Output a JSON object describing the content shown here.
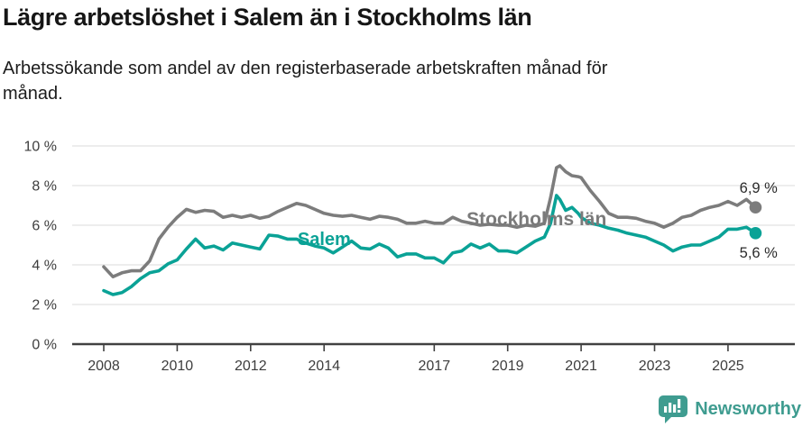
{
  "header": {
    "title": "Lägre arbetslöshet i Salem än i Stockholms län",
    "subtitle_line1": "Arbetssökande som andel av den registerbaserade arbetskraften månad för",
    "subtitle_line2": "månad."
  },
  "footer": {
    "brand": "Newsworthy",
    "brand_color": "#3f9c90"
  },
  "colors": {
    "salem": "#0aa296",
    "stockholm": "#7c7c7c",
    "gridline": "#e2e2e2",
    "axis": "#414141",
    "tick_label": "#3d3d3d",
    "value_label": "#2b2b2b"
  },
  "chart_data": {
    "type": "line",
    "title": "Lägre arbetslöshet i Salem än i Stockholms län",
    "subtitle": "Arbetssökande som andel av den registerbaserade arbetskraften månad för månad.",
    "xlabel": "",
    "ylabel": "",
    "ylim": [
      0,
      10
    ],
    "xlim": [
      2007.15,
      2026.85
    ],
    "grid": "horizontal",
    "legend_position": "inline-labels",
    "y_ticks": [
      0,
      2,
      4,
      6,
      8,
      10
    ],
    "y_tick_labels": [
      "0 %",
      "2 %",
      "4 %",
      "6 %",
      "8 %",
      "10 %"
    ],
    "x_ticks": [
      2008,
      2010,
      2012,
      2014,
      2017,
      2019,
      2021,
      2023,
      2025
    ],
    "x_tick_labels": [
      "2008",
      "2010",
      "2012",
      "2014",
      "2017",
      "2019",
      "2021",
      "2023",
      "2025"
    ],
    "x": [
      2008.0,
      2008.25,
      2008.5,
      2008.75,
      2009.0,
      2009.25,
      2009.5,
      2009.75,
      2010.0,
      2010.25,
      2010.5,
      2010.75,
      2011.0,
      2011.25,
      2011.5,
      2011.75,
      2012.0,
      2012.25,
      2012.5,
      2012.75,
      2013.0,
      2013.25,
      2013.5,
      2013.75,
      2014.0,
      2014.25,
      2014.5,
      2014.75,
      2015.0,
      2015.25,
      2015.5,
      2015.75,
      2016.0,
      2016.25,
      2016.5,
      2016.75,
      2017.0,
      2017.25,
      2017.5,
      2017.75,
      2018.0,
      2018.25,
      2018.5,
      2018.75,
      2019.0,
      2019.25,
      2019.5,
      2019.75,
      2020.0,
      2020.17,
      2020.33,
      2020.42,
      2020.58,
      2020.75,
      2020.92,
      2021.0,
      2021.25,
      2021.5,
      2021.75,
      2022.0,
      2022.25,
      2022.5,
      2022.75,
      2023.0,
      2023.25,
      2023.5,
      2023.75,
      2024.0,
      2024.25,
      2024.5,
      2024.75,
      2025.0,
      2025.25,
      2025.5,
      2025.75
    ],
    "series": [
      {
        "name": "Stockholms län",
        "color": "#7c7c7c",
        "end_label": "6,9 %",
        "end_value": 6.9,
        "values": [
          3.9,
          3.4,
          3.6,
          3.7,
          3.7,
          4.2,
          5.3,
          5.9,
          6.4,
          6.8,
          6.65,
          6.75,
          6.7,
          6.4,
          6.5,
          6.4,
          6.5,
          6.35,
          6.45,
          6.7,
          6.9,
          7.1,
          7.0,
          6.8,
          6.6,
          6.5,
          6.45,
          6.5,
          6.4,
          6.3,
          6.45,
          6.4,
          6.3,
          6.1,
          6.1,
          6.2,
          6.1,
          6.1,
          6.4,
          6.2,
          6.1,
          6.0,
          6.05,
          6.0,
          6.0,
          5.9,
          6.0,
          5.95,
          6.1,
          7.4,
          8.9,
          9.0,
          8.7,
          8.5,
          8.45,
          8.4,
          7.75,
          7.2,
          6.6,
          6.4,
          6.4,
          6.35,
          6.2,
          6.1,
          5.9,
          6.1,
          6.4,
          6.5,
          6.75,
          6.9,
          7.0,
          7.2,
          7.0,
          7.3,
          6.9
        ]
      },
      {
        "name": "Salem",
        "color": "#0aa296",
        "end_label": "5,6 %",
        "end_value": 5.6,
        "values": [
          2.7,
          2.5,
          2.6,
          2.9,
          3.3,
          3.6,
          3.7,
          4.05,
          4.25,
          4.8,
          5.3,
          4.85,
          4.95,
          4.75,
          5.1,
          5.0,
          4.9,
          4.8,
          5.5,
          5.45,
          5.3,
          5.3,
          5.1,
          4.95,
          4.85,
          4.6,
          4.9,
          5.2,
          4.85,
          4.8,
          5.05,
          4.85,
          4.4,
          4.55,
          4.55,
          4.35,
          4.35,
          4.1,
          4.6,
          4.7,
          5.05,
          4.85,
          5.05,
          4.7,
          4.7,
          4.6,
          4.9,
          5.2,
          5.4,
          6.1,
          7.5,
          7.3,
          6.75,
          6.9,
          6.6,
          6.4,
          6.1,
          6.0,
          5.85,
          5.75,
          5.6,
          5.5,
          5.4,
          5.2,
          5.0,
          4.7,
          4.9,
          5.0,
          5.0,
          5.2,
          5.4,
          5.8,
          5.8,
          5.9,
          5.6
        ]
      }
    ],
    "annotations": [
      {
        "text": "Stockholms län",
        "x": 2017.88,
        "y": 6.0,
        "anchor": "start",
        "size": 21,
        "weight": "bold",
        "color": "#7a7a7a"
      },
      {
        "text": "Salem",
        "x": 2013.28,
        "y": 5.0,
        "anchor": "start",
        "size": 20,
        "weight": "bold",
        "color": "#0aa296"
      },
      {
        "text": "6,9 %",
        "x": 2026.35,
        "y": 7.64,
        "anchor": "end",
        "size": 16.5,
        "weight": "normal",
        "color": "#2b2b2b"
      },
      {
        "text": "5,6 %",
        "x": 2026.35,
        "y": 4.36,
        "anchor": "end",
        "size": 16.5,
        "weight": "normal",
        "color": "#2b2b2b"
      }
    ]
  }
}
